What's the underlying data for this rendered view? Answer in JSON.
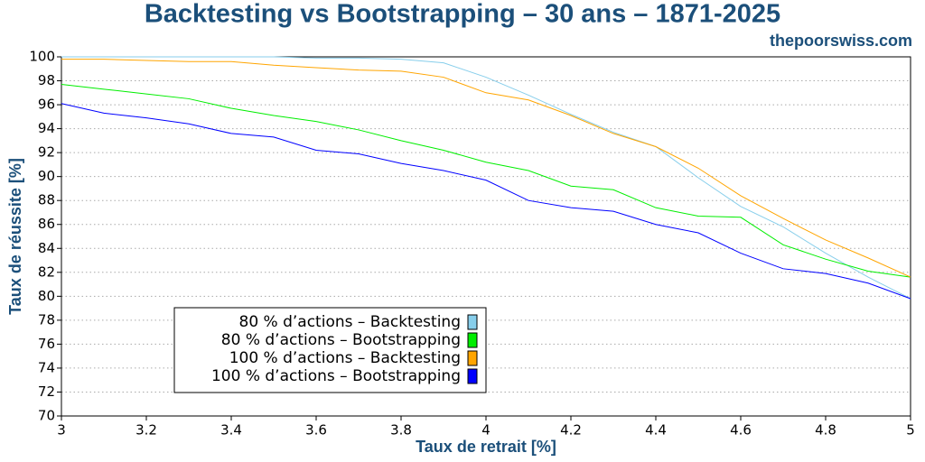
{
  "chart_data": {
    "type": "line",
    "title": "Backtesting vs Bootstrapping – 30 ans – 1871-2025",
    "subtitle": "thepoorswiss.com",
    "x_label": "Taux de retrait [%]",
    "y_label": "Taux de réussite [%]",
    "x": [
      3,
      3.1,
      3.2,
      3.3,
      3.4,
      3.5,
      3.6,
      3.7,
      3.8,
      3.9,
      4,
      4.1,
      4.2,
      4.3,
      4.4,
      4.5,
      4.6,
      4.7,
      4.8,
      4.9,
      5
    ],
    "series": [
      {
        "name": "80 % d’actions – Backtesting",
        "color": "#87ceeb",
        "values": [
          100,
          100,
          100,
          100,
          100,
          100,
          99.9,
          99.9,
          99.8,
          99.5,
          98.3,
          96.8,
          95.2,
          93.7,
          92.5,
          89.9,
          87.5,
          85.8,
          83.6,
          81.6,
          79.8
        ]
      },
      {
        "name": "80 % d’actions – Bootstrapping",
        "color": "#00ee00",
        "values": [
          97.7,
          97.3,
          96.9,
          96.5,
          95.7,
          95.1,
          94.6,
          93.9,
          93.0,
          92.2,
          91.2,
          90.5,
          89.2,
          88.9,
          87.4,
          86.7,
          86.6,
          84.3,
          83.1,
          82.1,
          81.6
        ]
      },
      {
        "name": "100 % d’actions – Backtesting",
        "color": "#ffa500",
        "values": [
          99.8,
          99.8,
          99.7,
          99.6,
          99.6,
          99.3,
          99.1,
          98.9,
          98.8,
          98.3,
          97.0,
          96.4,
          95.1,
          93.6,
          92.5,
          90.7,
          88.4,
          86.5,
          84.7,
          83.2,
          81.6
        ]
      },
      {
        "name": "100 % d’actions – Bootstrapping",
        "color": "#0000ff",
        "values": [
          96.1,
          95.3,
          94.9,
          94.4,
          93.6,
          93.3,
          92.2,
          91.9,
          91.1,
          90.5,
          89.7,
          88.0,
          87.4,
          87.1,
          86.0,
          85.3,
          83.6,
          82.3,
          81.9,
          81.1,
          79.8
        ]
      }
    ],
    "xlim": [
      3,
      5
    ],
    "xticks": [
      3,
      3.2,
      3.4,
      3.6,
      3.8,
      4,
      4.2,
      4.4,
      4.6,
      4.8,
      5
    ],
    "ylim": [
      70,
      100
    ],
    "yticks": [
      70,
      72,
      74,
      76,
      78,
      80,
      82,
      84,
      86,
      88,
      90,
      92,
      94,
      96,
      98,
      100
    ],
    "grid": true,
    "legend": "lower left"
  }
}
